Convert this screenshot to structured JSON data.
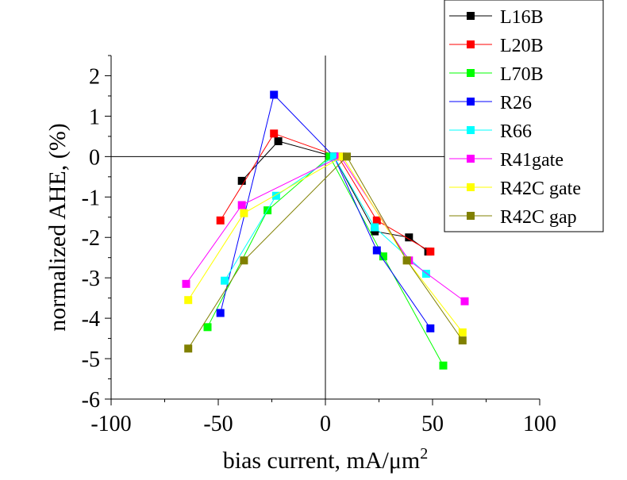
{
  "chart_data": {
    "type": "line",
    "xlabel": "bias current, mA/μm",
    "xlabel_superscript": "2",
    "ylabel": "normalized AHE, (%)",
    "xlim": [
      -100,
      100
    ],
    "ylim": [
      -6,
      2.5
    ],
    "x_ticks": [
      -100,
      -50,
      0,
      50,
      100
    ],
    "y_ticks": [
      -6,
      -5,
      -4,
      -3,
      -2,
      -1,
      0,
      1,
      2
    ],
    "x_tick_labels": [
      "-100",
      "-50",
      "0",
      "50",
      "100"
    ],
    "y_tick_labels": [
      "-6",
      "-5",
      "-4",
      "-3",
      "-2",
      "-1",
      "0",
      "1",
      "2"
    ],
    "reference_lines": {
      "x": 0,
      "y": 0
    },
    "legend_position": "top-right",
    "grid": false,
    "series": [
      {
        "name": "L16B",
        "color": "#000000",
        "points": [
          [
            -39,
            -0.6
          ],
          [
            -22,
            0.38
          ],
          [
            4,
            0
          ],
          [
            23,
            -1.85
          ],
          [
            39,
            -2
          ],
          [
            48,
            -2.35
          ]
        ]
      },
      {
        "name": "L20B",
        "color": "#ff0000",
        "points": [
          [
            -49,
            -1.58
          ],
          [
            -24,
            0.57
          ],
          [
            6,
            0
          ],
          [
            24,
            -1.58
          ],
          [
            49,
            -2.35
          ]
        ]
      },
      {
        "name": "L70B",
        "color": "#00ff00",
        "points": [
          [
            -55,
            -4.22
          ],
          [
            -27,
            -1.33
          ],
          [
            2,
            0
          ],
          [
            27,
            -2.47
          ],
          [
            55,
            -5.17
          ]
        ]
      },
      {
        "name": "R26",
        "color": "#0000ff",
        "points": [
          [
            -49,
            -3.87
          ],
          [
            -24,
            1.53
          ],
          [
            4,
            0
          ],
          [
            24,
            -2.32
          ],
          [
            49,
            -4.25
          ]
        ]
      },
      {
        "name": "R66",
        "color": "#00ffff",
        "points": [
          [
            -47,
            -3.07
          ],
          [
            -23,
            -0.97
          ],
          [
            4,
            0
          ],
          [
            23,
            -1.75
          ],
          [
            47,
            -2.9
          ]
        ]
      },
      {
        "name": "R41gate",
        "color": "#ff00ff",
        "points": [
          [
            -65,
            -3.15
          ],
          [
            -39,
            -1.2
          ],
          [
            7,
            0
          ],
          [
            39,
            -2.57
          ],
          [
            65,
            -3.58
          ]
        ]
      },
      {
        "name": "R42C gate",
        "color": "#ffff00",
        "points": [
          [
            -64,
            -3.55
          ],
          [
            -38,
            -1.4
          ],
          [
            8,
            0
          ],
          [
            38,
            -2.57
          ],
          [
            64,
            -4.35
          ]
        ]
      },
      {
        "name": "R42C gap",
        "color": "#808000",
        "points": [
          [
            -64,
            -4.75
          ],
          [
            -38,
            -2.57
          ],
          [
            10,
            0
          ],
          [
            38,
            -2.57
          ],
          [
            64,
            -4.55
          ]
        ]
      }
    ]
  }
}
